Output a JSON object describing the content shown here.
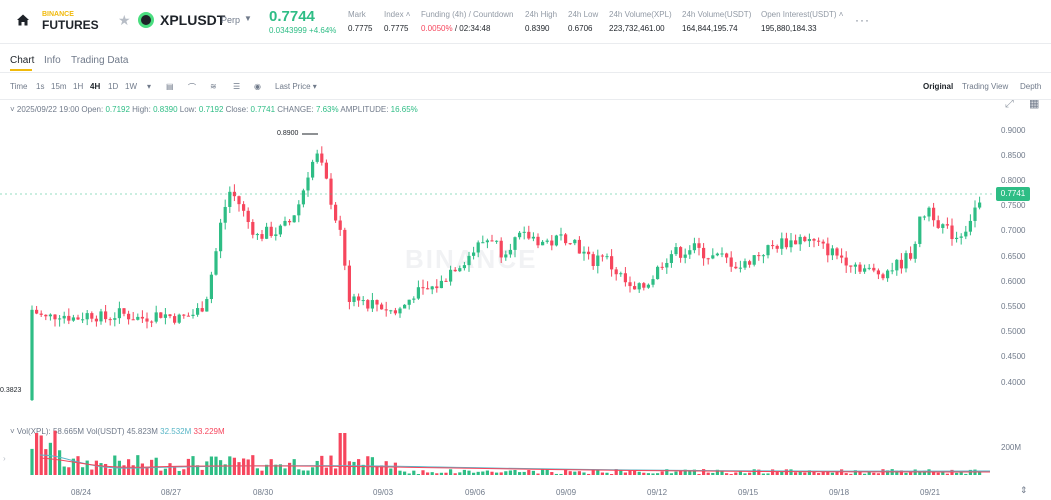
{
  "header": {
    "logo_top": "BINANCE",
    "logo_bottom": "FUTURES",
    "symbol": "XPLUSDT",
    "contract_type": "Perp",
    "last_price": "0.7744",
    "price_change": "0.0343999 +4.64%",
    "stats": [
      {
        "label": "Mark",
        "value": "0.7775"
      },
      {
        "label": "Index",
        "value": "0.7775"
      },
      {
        "label": "Funding (4h) / Countdown",
        "value_red": "0.0050%",
        "value": "/ 02:34:48"
      },
      {
        "label": "24h High",
        "value": "0.8390"
      },
      {
        "label": "24h Low",
        "value": "0.6706"
      },
      {
        "label": "24h Volume(XPL)",
        "value": "223,732,461.00"
      },
      {
        "label": "24h Volume(USDT)",
        "value": "164,844,195.74"
      },
      {
        "label": "Open Interest(USDT)",
        "value": "195,880,184.33"
      }
    ],
    "more": "···"
  },
  "tabs": [
    "Chart",
    "Info",
    "Trading Data"
  ],
  "toolbar": {
    "time_label": "Time",
    "intervals": [
      "1s",
      "15m",
      "1H",
      "4H",
      "1D",
      "1W"
    ],
    "active_interval": "4H",
    "price_type": "Last Price",
    "views": [
      "Original",
      "Trading View",
      "Depth"
    ],
    "active_view": "Original"
  },
  "ohlc": {
    "date": "2025/09/22 19:00",
    "open_label": "Open:",
    "open": "0.7192",
    "high_label": "High:",
    "high": "0.8390",
    "low_label": "Low:",
    "low": "0.7192",
    "close_label": "Close:",
    "close": "0.7741",
    "change_label": "CHANGE:",
    "change": "7.63%",
    "amplitude_label": "AMPLITUDE:",
    "amplitude": "16.65%"
  },
  "price_axis": [
    "0.9000",
    "0.8500",
    "0.8000",
    "0.7500",
    "0.7000",
    "0.6500",
    "0.6000",
    "0.5500",
    "0.5000",
    "0.4500",
    "0.4000"
  ],
  "current_price_tag": "0.7741",
  "high_marker": "0.8900",
  "low_marker": "0.3823",
  "volume": {
    "label_vol": "Vol(XPL):",
    "vol_value": "58.665M",
    "label_usdt": "Vol(USDT)",
    "usdt_value": "45.823M",
    "ma1": "32.532M",
    "ma2": "33.229M",
    "axis_label": "200M"
  },
  "dates": [
    "08/24",
    "08/27",
    "08/30",
    "09/03",
    "09/06",
    "09/09",
    "09/12",
    "09/15",
    "09/18",
    "09/21"
  ],
  "watermark": "BINANCE",
  "colors": {
    "up": "#2ebd85",
    "down": "#f6465d",
    "accent": "#f0b90b"
  }
}
